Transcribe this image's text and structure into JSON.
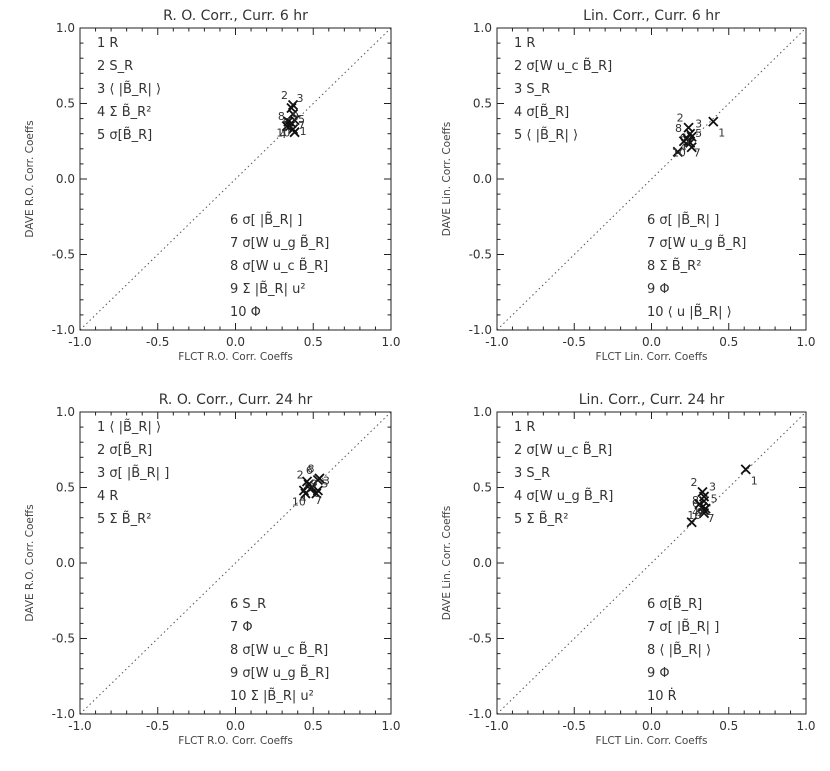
{
  "colors": {
    "frame": "#222222",
    "text": "#333333",
    "marker": "#111111",
    "diagonal": "#555555"
  },
  "chart_data": [
    {
      "type": "scatter",
      "title": "R. O. Corr., Curr. 6 hr",
      "xlabel": "FLCT R.O. Corr. Coeffs",
      "ylabel": "DAVE R.O. Corr. Coeffs",
      "xlim": [
        -1.0,
        1.0
      ],
      "ylim": [
        -1.0,
        1.0
      ],
      "xticks": [
        "-1.0",
        "-0.5",
        "0.0",
        "0.5",
        "1.0"
      ],
      "yticks": [
        "-1.0",
        "-0.5",
        "0.0",
        "0.5",
        "1.0"
      ],
      "reference_line": "y = x (dotted)",
      "legend_top": [
        "1 R",
        "2 S_R",
        "3 ⟨ |B̃_R| ⟩",
        "4 Σ B̃_R²",
        "5 σ[B̃_R]"
      ],
      "legend_bottom": [
        "6 σ[ |B̃_R| ]",
        "7 σ[W u_g B̃_R]",
        "8 σ[W u_c B̃_R]",
        "9 Σ |B̃_R| u²",
        "10 Φ"
      ],
      "points": [
        {
          "label": "1",
          "x": 0.38,
          "y": 0.39
        },
        {
          "label": "2",
          "x": 0.37,
          "y": 0.49
        },
        {
          "label": "3",
          "x": 0.36,
          "y": 0.47
        },
        {
          "label": "4",
          "x": 0.36,
          "y": 0.37
        },
        {
          "label": "5",
          "x": 0.37,
          "y": 0.33
        },
        {
          "label": "6",
          "x": 0.38,
          "y": 0.31
        },
        {
          "label": "7",
          "x": 0.37,
          "y": 0.43
        },
        {
          "label": "8",
          "x": 0.35,
          "y": 0.35
        },
        {
          "label": "9",
          "x": 0.33,
          "y": 0.35
        },
        {
          "label": "10",
          "x": 0.34,
          "y": 0.38
        }
      ]
    },
    {
      "type": "scatter",
      "title": "Lin. Corr., Curr. 6 hr",
      "xlabel": "FLCT Lin. Corr. Coeffs",
      "ylabel": "DAVE Lin. Corr. Coeffs",
      "xlim": [
        -1.0,
        1.0
      ],
      "ylim": [
        -1.0,
        1.0
      ],
      "xticks": [
        "-1.0",
        "-0.5",
        "0.0",
        "0.5",
        "1.0"
      ],
      "yticks": [
        "-1.0",
        "-0.5",
        "0.0",
        "0.5",
        "1.0"
      ],
      "reference_line": "y = x (dotted)",
      "legend_top": [
        "1 R",
        "2 σ[W u_c B̃_R]",
        "3 S_R",
        "4 σ[B̃_R]",
        "5 ⟨ |B̃_R| ⟩"
      ],
      "legend_bottom": [
        "6 σ[ |B̃_R| ]",
        "7 σ[W u_g B̃_R]",
        "8 Σ B̃_R²",
        "9 Φ",
        "10 ⟨ u |B̃_R| ⟩"
      ],
      "points": [
        {
          "label": "1",
          "x": 0.4,
          "y": 0.38
        },
        {
          "label": "2",
          "x": 0.24,
          "y": 0.34
        },
        {
          "label": "3",
          "x": 0.25,
          "y": 0.3
        },
        {
          "label": "4",
          "x": 0.26,
          "y": 0.28
        },
        {
          "label": "5",
          "x": 0.25,
          "y": 0.24
        },
        {
          "label": "6",
          "x": 0.26,
          "y": 0.21
        },
        {
          "label": "7",
          "x": 0.24,
          "y": 0.25
        },
        {
          "label": "8",
          "x": 0.23,
          "y": 0.27
        },
        {
          "label": "9",
          "x": 0.17,
          "y": 0.18
        },
        {
          "label": "10",
          "x": 0.21,
          "y": 0.25
        }
      ]
    },
    {
      "type": "scatter",
      "title": "R. O. Corr., Curr. 24 hr",
      "xlabel": "FLCT R.O. Corr. Coeffs",
      "ylabel": "DAVE R.O. Corr. Coeffs",
      "xlim": [
        -1.0,
        1.0
      ],
      "ylim": [
        -1.0,
        1.0
      ],
      "xticks": [
        "-1.0",
        "-0.5",
        "0.0",
        "0.5",
        "1.0"
      ],
      "yticks": [
        "-1.0",
        "-0.5",
        "0.0",
        "0.5",
        "1.0"
      ],
      "reference_line": "y = x (dotted)",
      "legend_top": [
        "1 ⟨ |B̃_R| ⟩",
        "2 σ[B̃_R]",
        "3 σ[ |B̃_R| ]",
        "4 R",
        "5 Σ B̃_R²"
      ],
      "legend_bottom": [
        "6 S_R",
        "7 Φ",
        "8 σ[W u_c B̃_R]",
        "9 σ[W u_g B̃_R]",
        "10 Σ |B̃_R| u²"
      ],
      "points": [
        {
          "label": "1",
          "x": 0.46,
          "y": 0.54
        },
        {
          "label": "2",
          "x": 0.47,
          "y": 0.52
        },
        {
          "label": "3",
          "x": 0.53,
          "y": 0.48
        },
        {
          "label": "4",
          "x": 0.49,
          "y": 0.5
        },
        {
          "label": "5",
          "x": 0.52,
          "y": 0.46
        },
        {
          "label": "6",
          "x": 0.53,
          "y": 0.55
        },
        {
          "label": "7",
          "x": 0.48,
          "y": 0.49
        },
        {
          "label": "8",
          "x": 0.54,
          "y": 0.56
        },
        {
          "label": "9",
          "x": 0.45,
          "y": 0.46
        },
        {
          "label": "10",
          "x": 0.44,
          "y": 0.48
        }
      ]
    },
    {
      "type": "scatter",
      "title": "Lin. Corr., Curr. 24 hr",
      "xlabel": "FLCT Lin. Corr. Coeffs",
      "ylabel": "DAVE Lin. Corr. Coeffs",
      "xlim": [
        -1.0,
        1.0
      ],
      "ylim": [
        -1.0,
        1.0
      ],
      "xticks": [
        "-1.0",
        "-0.5",
        "0.0",
        "0.5",
        "1.0"
      ],
      "yticks": [
        "-1.0",
        "-0.5",
        "0.0",
        "0.5",
        "1.0"
      ],
      "reference_line": "y = x (dotted)",
      "legend_top": [
        "1 R",
        "2 σ[W u_c B̃_R]",
        "3 S_R",
        "4 σ[W u_g B̃_R]",
        "5 Σ B̃_R²"
      ],
      "legend_bottom": [
        "6 σ[B̃_R]",
        "7 σ[ |B̃_R| ]",
        "8 ⟨ |B̃_R| ⟩",
        "9 Φ",
        "10 Ṙ"
      ],
      "points": [
        {
          "label": "1",
          "x": 0.61,
          "y": 0.62
        },
        {
          "label": "2",
          "x": 0.33,
          "y": 0.47
        },
        {
          "label": "3",
          "x": 0.34,
          "y": 0.44
        },
        {
          "label": "4",
          "x": 0.34,
          "y": 0.41
        },
        {
          "label": "5",
          "x": 0.35,
          "y": 0.36
        },
        {
          "label": "6",
          "x": 0.34,
          "y": 0.33
        },
        {
          "label": "7",
          "x": 0.33,
          "y": 0.37
        },
        {
          "label": "8",
          "x": 0.34,
          "y": 0.35
        },
        {
          "label": "9",
          "x": 0.26,
          "y": 0.27
        },
        {
          "label": "10",
          "x": 0.31,
          "y": 0.39
        }
      ]
    }
  ]
}
